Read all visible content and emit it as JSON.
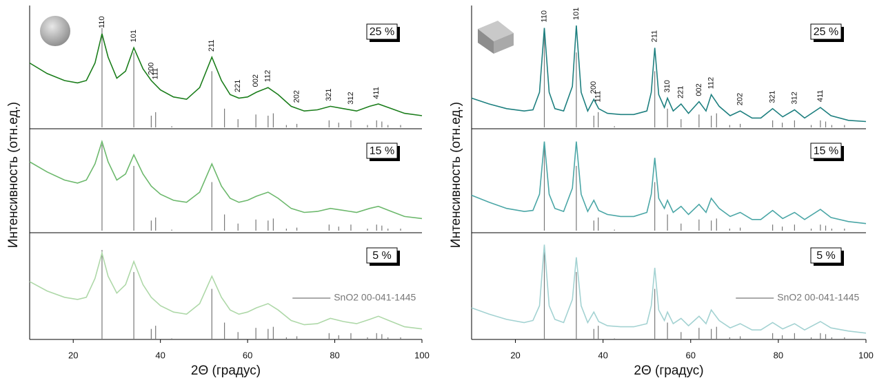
{
  "chart_data": [
    {
      "type": "line",
      "xlabel": "2Θ (градус)",
      "ylabel": "Интенсивность (отн.ед.)",
      "xlim": [
        10,
        100
      ],
      "xticks": [
        20,
        40,
        60,
        80,
        100
      ],
      "ylim": [
        0,
        100
      ],
      "x": [
        10,
        14,
        18,
        21,
        23,
        25,
        26.6,
        28,
        30,
        32,
        33.9,
        36,
        37.9,
        40,
        43,
        46,
        49,
        51.8,
        54,
        56,
        58,
        60,
        62,
        64.7,
        67,
        70,
        73,
        76,
        79,
        82,
        85,
        88,
        90,
        93,
        96,
        100
      ],
      "panels": [
        {
          "label": "25 %",
          "color": "#1a7d1a",
          "values": [
            55,
            46,
            40,
            38,
            40,
            55,
            80,
            60,
            42,
            48,
            68,
            50,
            40,
            32,
            26,
            24,
            34,
            60,
            40,
            28,
            25,
            26,
            30,
            34,
            28,
            18,
            14,
            15,
            18,
            16,
            14,
            18,
            20,
            16,
            12,
            10
          ]
        },
        {
          "label": "15 %",
          "color": "#6cb86c",
          "values": [
            68,
            58,
            50,
            47,
            50,
            66,
            88,
            68,
            50,
            56,
            75,
            56,
            44,
            36,
            30,
            28,
            38,
            66,
            44,
            32,
            28,
            30,
            34,
            38,
            32,
            22,
            18,
            19,
            22,
            20,
            18,
            22,
            24,
            19,
            14,
            12
          ]
        },
        {
          "label": "5 %",
          "color": "#aed8a8",
          "values": [
            55,
            46,
            40,
            38,
            40,
            58,
            82,
            60,
            44,
            52,
            74,
            52,
            40,
            32,
            26,
            24,
            34,
            60,
            40,
            28,
            24,
            26,
            30,
            34,
            28,
            18,
            14,
            15,
            20,
            17,
            15,
            19,
            22,
            17,
            12,
            10
          ]
        }
      ],
      "peaks": {
        "labels": [
          "110",
          "101",
          "200",
          "111",
          "211",
          "221",
          "002",
          "112",
          "202",
          "321",
          "312",
          "411"
        ],
        "x": [
          26.6,
          33.9,
          37.9,
          38.9,
          51.8,
          57.8,
          61.9,
          64.7,
          71.3,
          78.7,
          83.7,
          89.6
        ]
      },
      "reference": {
        "name": "SnO2 00-041-1445",
        "color": "#777777",
        "x": [
          26.6,
          33.9,
          37.9,
          38.9,
          42.6,
          51.8,
          54.7,
          57.8,
          61.9,
          64.7,
          65.9,
          68.9,
          71.3,
          78.7,
          80.9,
          83.7,
          87.5,
          89.6,
          90.8,
          92.2,
          95.1
        ],
        "values": [
          85,
          64,
          10,
          13,
          1,
          48,
          16,
          7,
          11,
          10,
          12,
          2,
          3,
          6,
          4,
          6,
          2,
          6,
          5,
          2,
          2
        ]
      }
    },
    {
      "type": "line",
      "xlabel": "2Θ (градус)",
      "ylabel": "Интенсивность (отн.ед.)",
      "xlim": [
        10,
        100
      ],
      "xticks": [
        20,
        40,
        60,
        80,
        100
      ],
      "ylim": [
        0,
        100
      ],
      "x": [
        10,
        14,
        18,
        22,
        24,
        25.5,
        26.6,
        27.7,
        29,
        31,
        33,
        33.9,
        35,
        36.5,
        37.9,
        39,
        41,
        44,
        47,
        50,
        51,
        51.8,
        52.7,
        54,
        54.7,
        56,
        57.8,
        59.5,
        61.9,
        63.5,
        64.7,
        66.5,
        69,
        71.3,
        74,
        76,
        78.7,
        81,
        83.7,
        86,
        89.6,
        92,
        96,
        100
      ],
      "panels": [
        {
          "label": "25 %",
          "color": "#1d7f7f",
          "values": [
            25,
            20,
            16,
            14,
            15,
            30,
            85,
            30,
            16,
            14,
            35,
            87,
            30,
            14,
            24,
            16,
            12,
            11,
            11,
            14,
            30,
            68,
            28,
            17,
            25,
            14,
            20,
            12,
            22,
            14,
            28,
            18,
            10,
            14,
            8,
            8,
            16,
            9,
            15,
            8,
            17,
            10,
            6,
            5
          ]
        },
        {
          "label": "15 %",
          "color": "#4aa6a6",
          "values": [
            35,
            28,
            22,
            19,
            20,
            36,
            88,
            36,
            22,
            19,
            42,
            88,
            36,
            19,
            30,
            20,
            16,
            14,
            14,
            18,
            36,
            72,
            32,
            22,
            30,
            18,
            24,
            16,
            26,
            18,
            32,
            22,
            14,
            18,
            11,
            11,
            20,
            12,
            18,
            11,
            21,
            13,
            9,
            7
          ]
        },
        {
          "label": "5 %",
          "color": "#a3d2d2",
          "values": [
            30,
            24,
            19,
            16,
            18,
            32,
            90,
            32,
            19,
            16,
            38,
            78,
            32,
            16,
            26,
            17,
            13,
            12,
            12,
            15,
            32,
            68,
            28,
            18,
            26,
            15,
            20,
            13,
            22,
            15,
            28,
            18,
            11,
            15,
            9,
            9,
            16,
            10,
            15,
            9,
            17,
            11,
            8,
            6
          ]
        }
      ],
      "peaks": {
        "labels": [
          "110",
          "101",
          "200",
          "111",
          "211",
          "310",
          "221",
          "002",
          "112",
          "202",
          "321",
          "312",
          "411"
        ],
        "x": [
          26.6,
          33.9,
          37.9,
          38.9,
          51.8,
          54.7,
          57.8,
          61.9,
          64.7,
          71.3,
          78.7,
          83.7,
          89.6
        ]
      },
      "reference": {
        "name": "SnO2 00-041-1445",
        "color": "#777777",
        "x": [
          26.6,
          33.9,
          37.9,
          38.9,
          42.6,
          51.8,
          54.7,
          57.8,
          61.9,
          64.7,
          65.9,
          68.9,
          71.3,
          78.7,
          80.9,
          83.7,
          87.5,
          89.6,
          90.8,
          92.2,
          95.1
        ],
        "values": [
          85,
          64,
          10,
          13,
          1,
          48,
          16,
          7,
          11,
          10,
          12,
          2,
          3,
          6,
          4,
          6,
          2,
          6,
          5,
          2,
          2
        ]
      }
    }
  ]
}
